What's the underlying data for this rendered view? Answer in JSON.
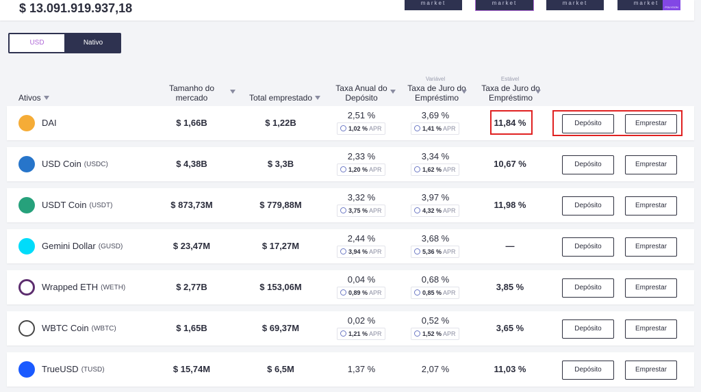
{
  "header": {
    "total": "$ 13.091.919.937,18",
    "markets": [
      {
        "label": "market"
      },
      {
        "label": "market"
      },
      {
        "label": "market"
      },
      {
        "label": "market",
        "badge": "POLYGON"
      }
    ]
  },
  "toggle": [
    "USD",
    "Nativo"
  ],
  "columns": {
    "asset": "Ativos",
    "market_size": "Tamanho do mercado",
    "borrowed": "Total emprestado",
    "deposit": "Taxa Anual do Depósito",
    "variable": {
      "super": "Variável",
      "label": "Taxa de Juro do Empréstimo"
    },
    "stable": {
      "super": "Estável",
      "label": "Taxa de Juro do Empréstimo"
    }
  },
  "apr_label": "APR",
  "actions": [
    "Depósito",
    "Emprestar"
  ],
  "rows": [
    {
      "name": "DAI",
      "symbol": null,
      "market_size": "$ 1,66B",
      "borrowed": "$ 1,22B",
      "deposit": "2,51 %",
      "deposit_apr": "1,02 %",
      "variable": "3,69 %",
      "variable_apr": "1,41 %",
      "stable": "11,84 %"
    },
    {
      "name": "USD Coin",
      "symbol": "(USDC)",
      "market_size": "$ 4,38B",
      "borrowed": "$ 3,3B",
      "deposit": "2,33 %",
      "deposit_apr": "1,20 %",
      "variable": "3,34 %",
      "variable_apr": "1,62 %",
      "stable": "10,67 %"
    },
    {
      "name": "USDT Coin",
      "symbol": "(USDT)",
      "market_size": "$ 873,73M",
      "borrowed": "$ 779,88M",
      "deposit": "3,32 %",
      "deposit_apr": "3,75 %",
      "variable": "3,97 %",
      "variable_apr": "4,32 %",
      "stable": "11,98 %"
    },
    {
      "name": "Gemini Dollar",
      "symbol": "(GUSD)",
      "market_size": "$ 23,47M",
      "borrowed": "$ 17,27M",
      "deposit": "2,44 %",
      "deposit_apr": "3,94 %",
      "variable": "3,68 %",
      "variable_apr": "5,36 %",
      "stable": "—"
    },
    {
      "name": "Wrapped ETH",
      "symbol": "(WETH)",
      "market_size": "$ 2,77B",
      "borrowed": "$ 153,06M",
      "deposit": "0,04 %",
      "deposit_apr": "0,89 %",
      "variable": "0,68 %",
      "variable_apr": "0,85 %",
      "stable": "3,85 %"
    },
    {
      "name": "WBTC Coin",
      "symbol": "(WBTC)",
      "market_size": "$ 1,65B",
      "borrowed": "$ 69,37M",
      "deposit": "0,02 %",
      "deposit_apr": "1,21 %",
      "variable": "0,52 %",
      "variable_apr": "1,52 %",
      "stable": "3,65 %"
    },
    {
      "name": "TrueUSD",
      "symbol": "(TUSD)",
      "market_size": "$ 15,74M",
      "borrowed": "$ 6,5M",
      "deposit": "1,37 %",
      "deposit_apr": null,
      "variable": "2,07 %",
      "variable_apr": null,
      "stable": "11,03 %"
    }
  ]
}
